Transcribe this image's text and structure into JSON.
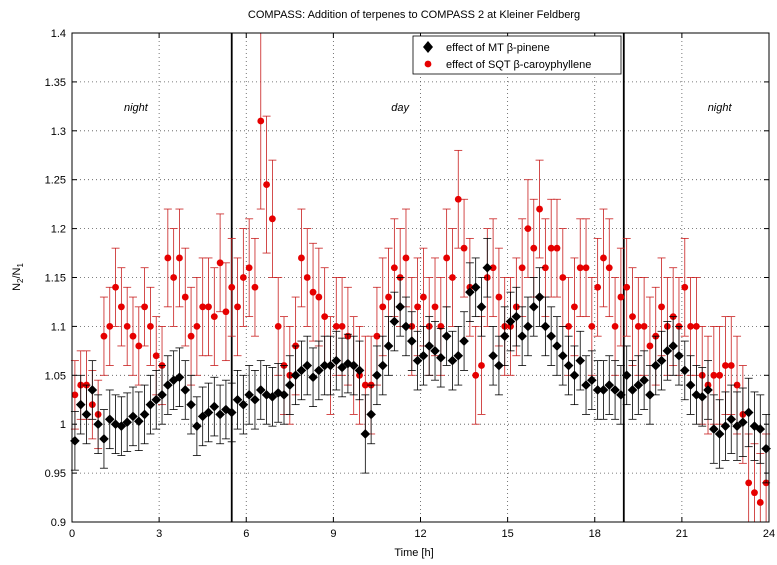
{
  "chart_data": {
    "type": "scatter",
    "title": "COMPASS: Addition of terpenes to COMPASS 2 at Kleiner Feldberg",
    "xlabel": "Time [h]",
    "ylabel_main": "N",
    "ylabel_sub1": "2",
    "ylabel_mid": "/N",
    "ylabel_sub2": "1",
    "xlim": [
      0,
      24
    ],
    "ylim": [
      0.9,
      1.4
    ],
    "xticks": [
      0,
      3,
      6,
      9,
      12,
      15,
      18,
      21,
      24
    ],
    "xtick_labels": [
      "0",
      "3",
      "6",
      "9",
      "12",
      "15",
      "18",
      "21",
      "24"
    ],
    "yticks": [
      0.9,
      0.95,
      1.0,
      1.05,
      1.1,
      1.15,
      1.2,
      1.25,
      1.3,
      1.35,
      1.4
    ],
    "ytick_labels": [
      "0.9",
      "0.95",
      "1",
      "1.05",
      "1.1",
      "1.15",
      "1.2",
      "1.25",
      "1.3",
      "1.35",
      "1.4"
    ],
    "grid": true,
    "legend_position": "top-right",
    "vlines": [
      5.5,
      19.0
    ],
    "annotations": [
      {
        "text": "night",
        "x": 2.2,
        "y": 1.32
      },
      {
        "text": "day",
        "x": 11.3,
        "y": 1.32
      },
      {
        "text": "night",
        "x": 22.3,
        "y": 1.32
      }
    ],
    "series": [
      {
        "name": "effect of MT β-pinene",
        "color": "#000000",
        "marker": "diamond",
        "x": [
          0.1,
          0.3,
          0.5,
          0.7,
          0.9,
          1.1,
          1.3,
          1.5,
          1.7,
          1.9,
          2.1,
          2.3,
          2.5,
          2.7,
          2.9,
          3.1,
          3.3,
          3.5,
          3.7,
          3.9,
          4.1,
          4.3,
          4.5,
          4.7,
          4.9,
          5.1,
          5.3,
          5.5,
          5.7,
          5.9,
          6.1,
          6.3,
          6.5,
          6.7,
          6.9,
          7.1,
          7.3,
          7.5,
          7.7,
          7.9,
          8.1,
          8.3,
          8.5,
          8.7,
          8.9,
          9.1,
          9.3,
          9.5,
          9.7,
          9.9,
          10.1,
          10.3,
          10.5,
          10.7,
          10.9,
          11.1,
          11.3,
          11.5,
          11.7,
          11.9,
          12.1,
          12.3,
          12.5,
          12.7,
          12.9,
          13.1,
          13.3,
          13.5,
          13.7,
          13.9,
          14.1,
          14.3,
          14.5,
          14.7,
          14.9,
          15.1,
          15.3,
          15.5,
          15.7,
          15.9,
          16.1,
          16.3,
          16.5,
          16.7,
          16.9,
          17.1,
          17.3,
          17.5,
          17.7,
          17.9,
          18.1,
          18.3,
          18.5,
          18.7,
          18.9,
          19.1,
          19.3,
          19.5,
          19.7,
          19.9,
          20.1,
          20.3,
          20.5,
          20.7,
          20.9,
          21.1,
          21.3,
          21.5,
          21.7,
          21.9,
          22.1,
          22.3,
          22.5,
          22.7,
          22.9,
          23.1,
          23.3,
          23.5,
          23.7,
          23.9
        ],
        "y": [
          0.983,
          1.02,
          1.01,
          1.035,
          1.0,
          0.985,
          1.005,
          1.0,
          0.998,
          1.002,
          1.008,
          1.003,
          1.01,
          1.02,
          1.025,
          1.03,
          1.04,
          1.045,
          1.048,
          1.035,
          1.02,
          0.998,
          1.008,
          1.012,
          1.018,
          1.01,
          1.015,
          1.012,
          1.025,
          1.02,
          1.03,
          1.025,
          1.035,
          1.03,
          1.028,
          1.032,
          1.03,
          1.04,
          1.05,
          1.055,
          1.06,
          1.048,
          1.055,
          1.06,
          1.06,
          1.065,
          1.058,
          1.062,
          1.06,
          1.055,
          0.99,
          1.01,
          1.05,
          1.06,
          1.08,
          1.105,
          1.12,
          1.1,
          1.085,
          1.065,
          1.07,
          1.08,
          1.075,
          1.068,
          1.09,
          1.065,
          1.07,
          1.085,
          1.135,
          1.14,
          1.12,
          1.16,
          1.07,
          1.06,
          1.09,
          1.105,
          1.11,
          1.09,
          1.1,
          1.12,
          1.13,
          1.1,
          1.09,
          1.08,
          1.07,
          1.06,
          1.05,
          1.065,
          1.04,
          1.045,
          1.035,
          1.035,
          1.04,
          1.035,
          1.03,
          1.05,
          1.035,
          1.04,
          1.045,
          1.03,
          1.06,
          1.065,
          1.075,
          1.08,
          1.07,
          1.055,
          1.04,
          1.03,
          1.028,
          1.035,
          0.995,
          0.99,
          0.998,
          1.005,
          0.998,
          1.002,
          1.012,
          0.998,
          0.995,
          0.975
        ],
        "err": [
          0.03,
          0.03,
          0.03,
          0.03,
          0.03,
          0.03,
          0.03,
          0.03,
          0.03,
          0.03,
          0.03,
          0.03,
          0.03,
          0.03,
          0.03,
          0.03,
          0.03,
          0.03,
          0.03,
          0.03,
          0.03,
          0.03,
          0.03,
          0.03,
          0.03,
          0.03,
          0.03,
          0.03,
          0.03,
          0.03,
          0.03,
          0.03,
          0.03,
          0.03,
          0.03,
          0.03,
          0.03,
          0.03,
          0.03,
          0.03,
          0.03,
          0.03,
          0.03,
          0.03,
          0.03,
          0.03,
          0.03,
          0.03,
          0.03,
          0.03,
          0.04,
          0.03,
          0.03,
          0.03,
          0.03,
          0.03,
          0.03,
          0.03,
          0.03,
          0.03,
          0.03,
          0.03,
          0.03,
          0.03,
          0.03,
          0.03,
          0.03,
          0.03,
          0.03,
          0.03,
          0.03,
          0.03,
          0.03,
          0.03,
          0.03,
          0.03,
          0.03,
          0.03,
          0.03,
          0.03,
          0.03,
          0.03,
          0.03,
          0.03,
          0.03,
          0.03,
          0.03,
          0.03,
          0.03,
          0.03,
          0.03,
          0.03,
          0.03,
          0.03,
          0.03,
          0.03,
          0.03,
          0.03,
          0.03,
          0.03,
          0.03,
          0.03,
          0.03,
          0.03,
          0.03,
          0.03,
          0.03,
          0.03,
          0.03,
          0.03,
          0.035,
          0.035,
          0.035,
          0.035,
          0.035,
          0.035,
          0.035,
          0.035,
          0.035,
          0.035
        ]
      },
      {
        "name": "effect of SQT β-caroyphyllene",
        "color": "#e60000",
        "marker": "circle",
        "x": [
          0.1,
          0.3,
          0.5,
          0.7,
          0.9,
          1.1,
          1.3,
          1.5,
          1.7,
          1.9,
          2.1,
          2.3,
          2.5,
          2.7,
          2.9,
          3.1,
          3.3,
          3.5,
          3.7,
          3.9,
          4.1,
          4.3,
          4.5,
          4.7,
          4.9,
          5.1,
          5.3,
          5.5,
          5.7,
          5.9,
          6.1,
          6.3,
          6.5,
          6.7,
          6.9,
          7.1,
          7.3,
          7.5,
          7.7,
          7.9,
          8.1,
          8.3,
          8.5,
          8.7,
          8.9,
          9.1,
          9.3,
          9.5,
          9.7,
          9.9,
          10.1,
          10.3,
          10.5,
          10.7,
          10.9,
          11.1,
          11.3,
          11.5,
          11.7,
          11.9,
          12.1,
          12.3,
          12.5,
          12.7,
          12.9,
          13.1,
          13.3,
          13.5,
          13.7,
          13.9,
          14.1,
          14.3,
          14.5,
          14.7,
          14.9,
          15.1,
          15.3,
          15.5,
          15.7,
          15.9,
          16.1,
          16.3,
          16.5,
          16.7,
          16.9,
          17.1,
          17.3,
          17.5,
          17.7,
          17.9,
          18.1,
          18.3,
          18.5,
          18.7,
          18.9,
          19.1,
          19.3,
          19.5,
          19.7,
          19.9,
          20.1,
          20.3,
          20.5,
          20.7,
          20.9,
          21.1,
          21.3,
          21.5,
          21.7,
          21.9,
          22.1,
          22.3,
          22.5,
          22.7,
          22.9,
          23.1,
          23.3,
          23.5,
          23.7,
          23.9
        ],
        "y": [
          1.03,
          1.04,
          1.04,
          1.02,
          1.01,
          1.09,
          1.1,
          1.14,
          1.12,
          1.1,
          1.09,
          1.08,
          1.12,
          1.1,
          1.07,
          1.06,
          1.17,
          1.15,
          1.17,
          1.13,
          1.09,
          1.1,
          1.12,
          1.12,
          1.11,
          1.165,
          1.115,
          1.14,
          1.12,
          1.15,
          1.16,
          1.14,
          1.31,
          1.245,
          1.21,
          1.1,
          1.06,
          1.05,
          1.08,
          1.17,
          1.15,
          1.135,
          1.13,
          1.11,
          1.06,
          1.1,
          1.1,
          1.09,
          1.06,
          1.05,
          1.04,
          1.04,
          1.09,
          1.12,
          1.13,
          1.16,
          1.15,
          1.17,
          1.1,
          1.12,
          1.13,
          1.1,
          1.12,
          1.1,
          1.17,
          1.15,
          1.23,
          1.18,
          1.14,
          1.05,
          1.06,
          1.15,
          1.16,
          1.13,
          1.1,
          1.1,
          1.12,
          1.16,
          1.2,
          1.18,
          1.22,
          1.16,
          1.18,
          1.18,
          1.15,
          1.1,
          1.12,
          1.16,
          1.16,
          1.1,
          1.14,
          1.17,
          1.16,
          1.1,
          1.13,
          1.14,
          1.11,
          1.1,
          1.1,
          1.08,
          1.09,
          1.12,
          1.1,
          1.11,
          1.1,
          1.14,
          1.1,
          1.1,
          1.05,
          1.04,
          1.05,
          1.05,
          1.06,
          1.06,
          1.04,
          1.01,
          0.94,
          0.93,
          0.92,
          0.94
        ],
        "err": [
          0.035,
          0.035,
          0.035,
          0.035,
          0.035,
          0.04,
          0.04,
          0.04,
          0.04,
          0.04,
          0.04,
          0.04,
          0.04,
          0.04,
          0.04,
          0.04,
          0.05,
          0.05,
          0.05,
          0.05,
          0.05,
          0.05,
          0.05,
          0.05,
          0.05,
          0.05,
          0.05,
          0.05,
          0.05,
          0.05,
          0.05,
          0.05,
          0.09,
          0.07,
          0.06,
          0.05,
          0.05,
          0.05,
          0.05,
          0.05,
          0.05,
          0.05,
          0.05,
          0.05,
          0.05,
          0.05,
          0.05,
          0.05,
          0.05,
          0.05,
          0.05,
          0.05,
          0.05,
          0.05,
          0.05,
          0.05,
          0.05,
          0.05,
          0.05,
          0.05,
          0.05,
          0.05,
          0.05,
          0.05,
          0.05,
          0.05,
          0.05,
          0.05,
          0.05,
          0.05,
          0.05,
          0.05,
          0.05,
          0.05,
          0.05,
          0.05,
          0.05,
          0.05,
          0.05,
          0.05,
          0.05,
          0.05,
          0.05,
          0.05,
          0.05,
          0.05,
          0.05,
          0.05,
          0.05,
          0.05,
          0.05,
          0.05,
          0.05,
          0.05,
          0.05,
          0.05,
          0.05,
          0.05,
          0.05,
          0.05,
          0.05,
          0.05,
          0.05,
          0.05,
          0.05,
          0.05,
          0.05,
          0.05,
          0.05,
          0.05,
          0.05,
          0.05,
          0.05,
          0.05,
          0.05,
          0.05,
          0.05,
          0.05,
          0.05,
          0.05
        ]
      }
    ]
  }
}
